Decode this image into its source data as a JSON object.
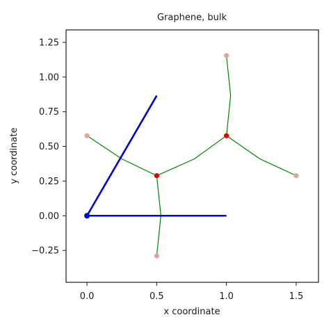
{
  "chart_data": {
    "type": "line",
    "title": "Graphene, bulk",
    "xlabel": "x coordinate",
    "ylabel": "y coordinate",
    "xlim": [
      -0.15,
      1.66
    ],
    "ylim": [
      -0.48,
      1.34
    ],
    "xticks": [
      0.0,
      0.5,
      1.0,
      1.5
    ],
    "xtick_labels": [
      "0.0",
      "0.5",
      "1.0",
      "1.5"
    ],
    "yticks": [
      -0.25,
      0.0,
      0.25,
      0.5,
      0.75,
      1.0,
      1.25
    ],
    "ytick_labels": [
      "−0.25",
      "0.00",
      "0.25",
      "0.50",
      "0.75",
      "1.00",
      "1.25"
    ],
    "grid": false,
    "lattice_vectors": {
      "color": "#0000dd",
      "origin": [
        0.0,
        0.0
      ],
      "vectors": [
        {
          "x": [
            0.0,
            1.0
          ],
          "y": [
            0.0,
            0.0
          ]
        },
        {
          "x": [
            0.0,
            0.5
          ],
          "y": [
            0.0,
            0.866
          ]
        }
      ]
    },
    "bonds": {
      "color": "#008000",
      "paths": [
        {
          "x": [
            0.0,
            0.25,
            0.5
          ],
          "y": [
            0.577,
            0.41,
            0.289
          ]
        },
        {
          "x": [
            0.5,
            0.77,
            1.0
          ],
          "y": [
            0.289,
            0.41,
            0.577
          ]
        },
        {
          "x": [
            0.5,
            0.53,
            0.5
          ],
          "y": [
            0.289,
            0.0,
            -0.289
          ]
        },
        {
          "x": [
            1.0,
            1.03,
            1.0
          ],
          "y": [
            0.577,
            0.866,
            1.155
          ]
        },
        {
          "x": [
            1.0,
            1.24,
            1.5
          ],
          "y": [
            0.577,
            0.41,
            0.289
          ]
        }
      ]
    },
    "atoms": [
      {
        "role": "basis",
        "color": "#dd0000",
        "x": 0.5,
        "y": 0.289
      },
      {
        "role": "basis",
        "color": "#dd0000",
        "x": 1.0,
        "y": 0.577
      },
      {
        "role": "neighbor",
        "color": "#d8a8a0",
        "x": 0.0,
        "y": 0.577
      },
      {
        "role": "neighbor",
        "color": "#d8a8a0",
        "x": 0.5,
        "y": -0.289
      },
      {
        "role": "neighbor",
        "color": "#d8a8a0",
        "x": 1.0,
        "y": 1.155
      },
      {
        "role": "neighbor",
        "color": "#d8a8a0",
        "x": 1.5,
        "y": 0.289
      }
    ]
  }
}
